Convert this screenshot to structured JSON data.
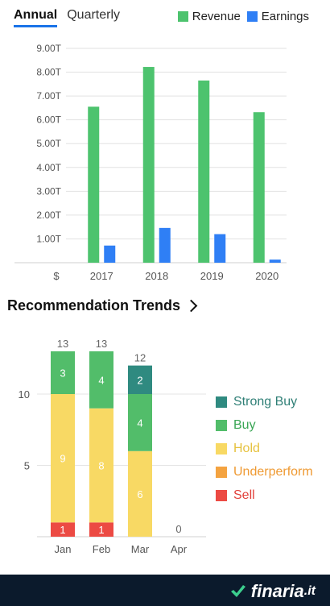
{
  "tabs": [
    {
      "label": "Annual",
      "active": true
    },
    {
      "label": "Quarterly",
      "active": false
    }
  ],
  "rec_title": "Recommendation Trends",
  "logo": {
    "name": "finaria",
    "tld": ".it"
  },
  "chart_data": [
    {
      "type": "bar",
      "title": "",
      "categories": [
        "2017",
        "2018",
        "2019",
        "2020"
      ],
      "series": [
        {
          "name": "Revenue",
          "color": "#4dc36e",
          "values": [
            6.55,
            8.22,
            7.65,
            6.32
          ]
        },
        {
          "name": "Earnings",
          "color": "#2f7ff5",
          "values": [
            0.72,
            1.46,
            1.2,
            0.13
          ]
        }
      ],
      "ylim": [
        0,
        9
      ],
      "yticks": [
        "9.00T",
        "8.00T",
        "7.00T",
        "6.00T",
        "5.00T",
        "4.00T",
        "3.00T",
        "2.00T",
        "1.00T"
      ],
      "yunit": "$",
      "grid": true,
      "legend": "top-right"
    },
    {
      "type": "bar",
      "stacked": true,
      "title": "Recommendation Trends",
      "categories": [
        "Jan",
        "Feb",
        "Mar",
        "Apr"
      ],
      "series": [
        {
          "name": "Strong Buy",
          "color": "#2f8a80",
          "values": [
            0,
            0,
            2,
            0
          ]
        },
        {
          "name": "Buy",
          "color": "#52bd6a",
          "values": [
            3,
            4,
            4,
            0
          ]
        },
        {
          "name": "Hold",
          "color": "#f8d964",
          "values": [
            9,
            8,
            6,
            0
          ]
        },
        {
          "name": "Underperform",
          "color": "#f4a340",
          "values": [
            0,
            0,
            0,
            0
          ]
        },
        {
          "name": "Sell",
          "color": "#ec4a43",
          "values": [
            1,
            1,
            0,
            0
          ]
        }
      ],
      "totals": [
        13,
        13,
        12,
        0
      ],
      "yticks": [
        "10",
        "5"
      ],
      "ylim": [
        0,
        13
      ],
      "grid": true,
      "legend": "right"
    }
  ]
}
